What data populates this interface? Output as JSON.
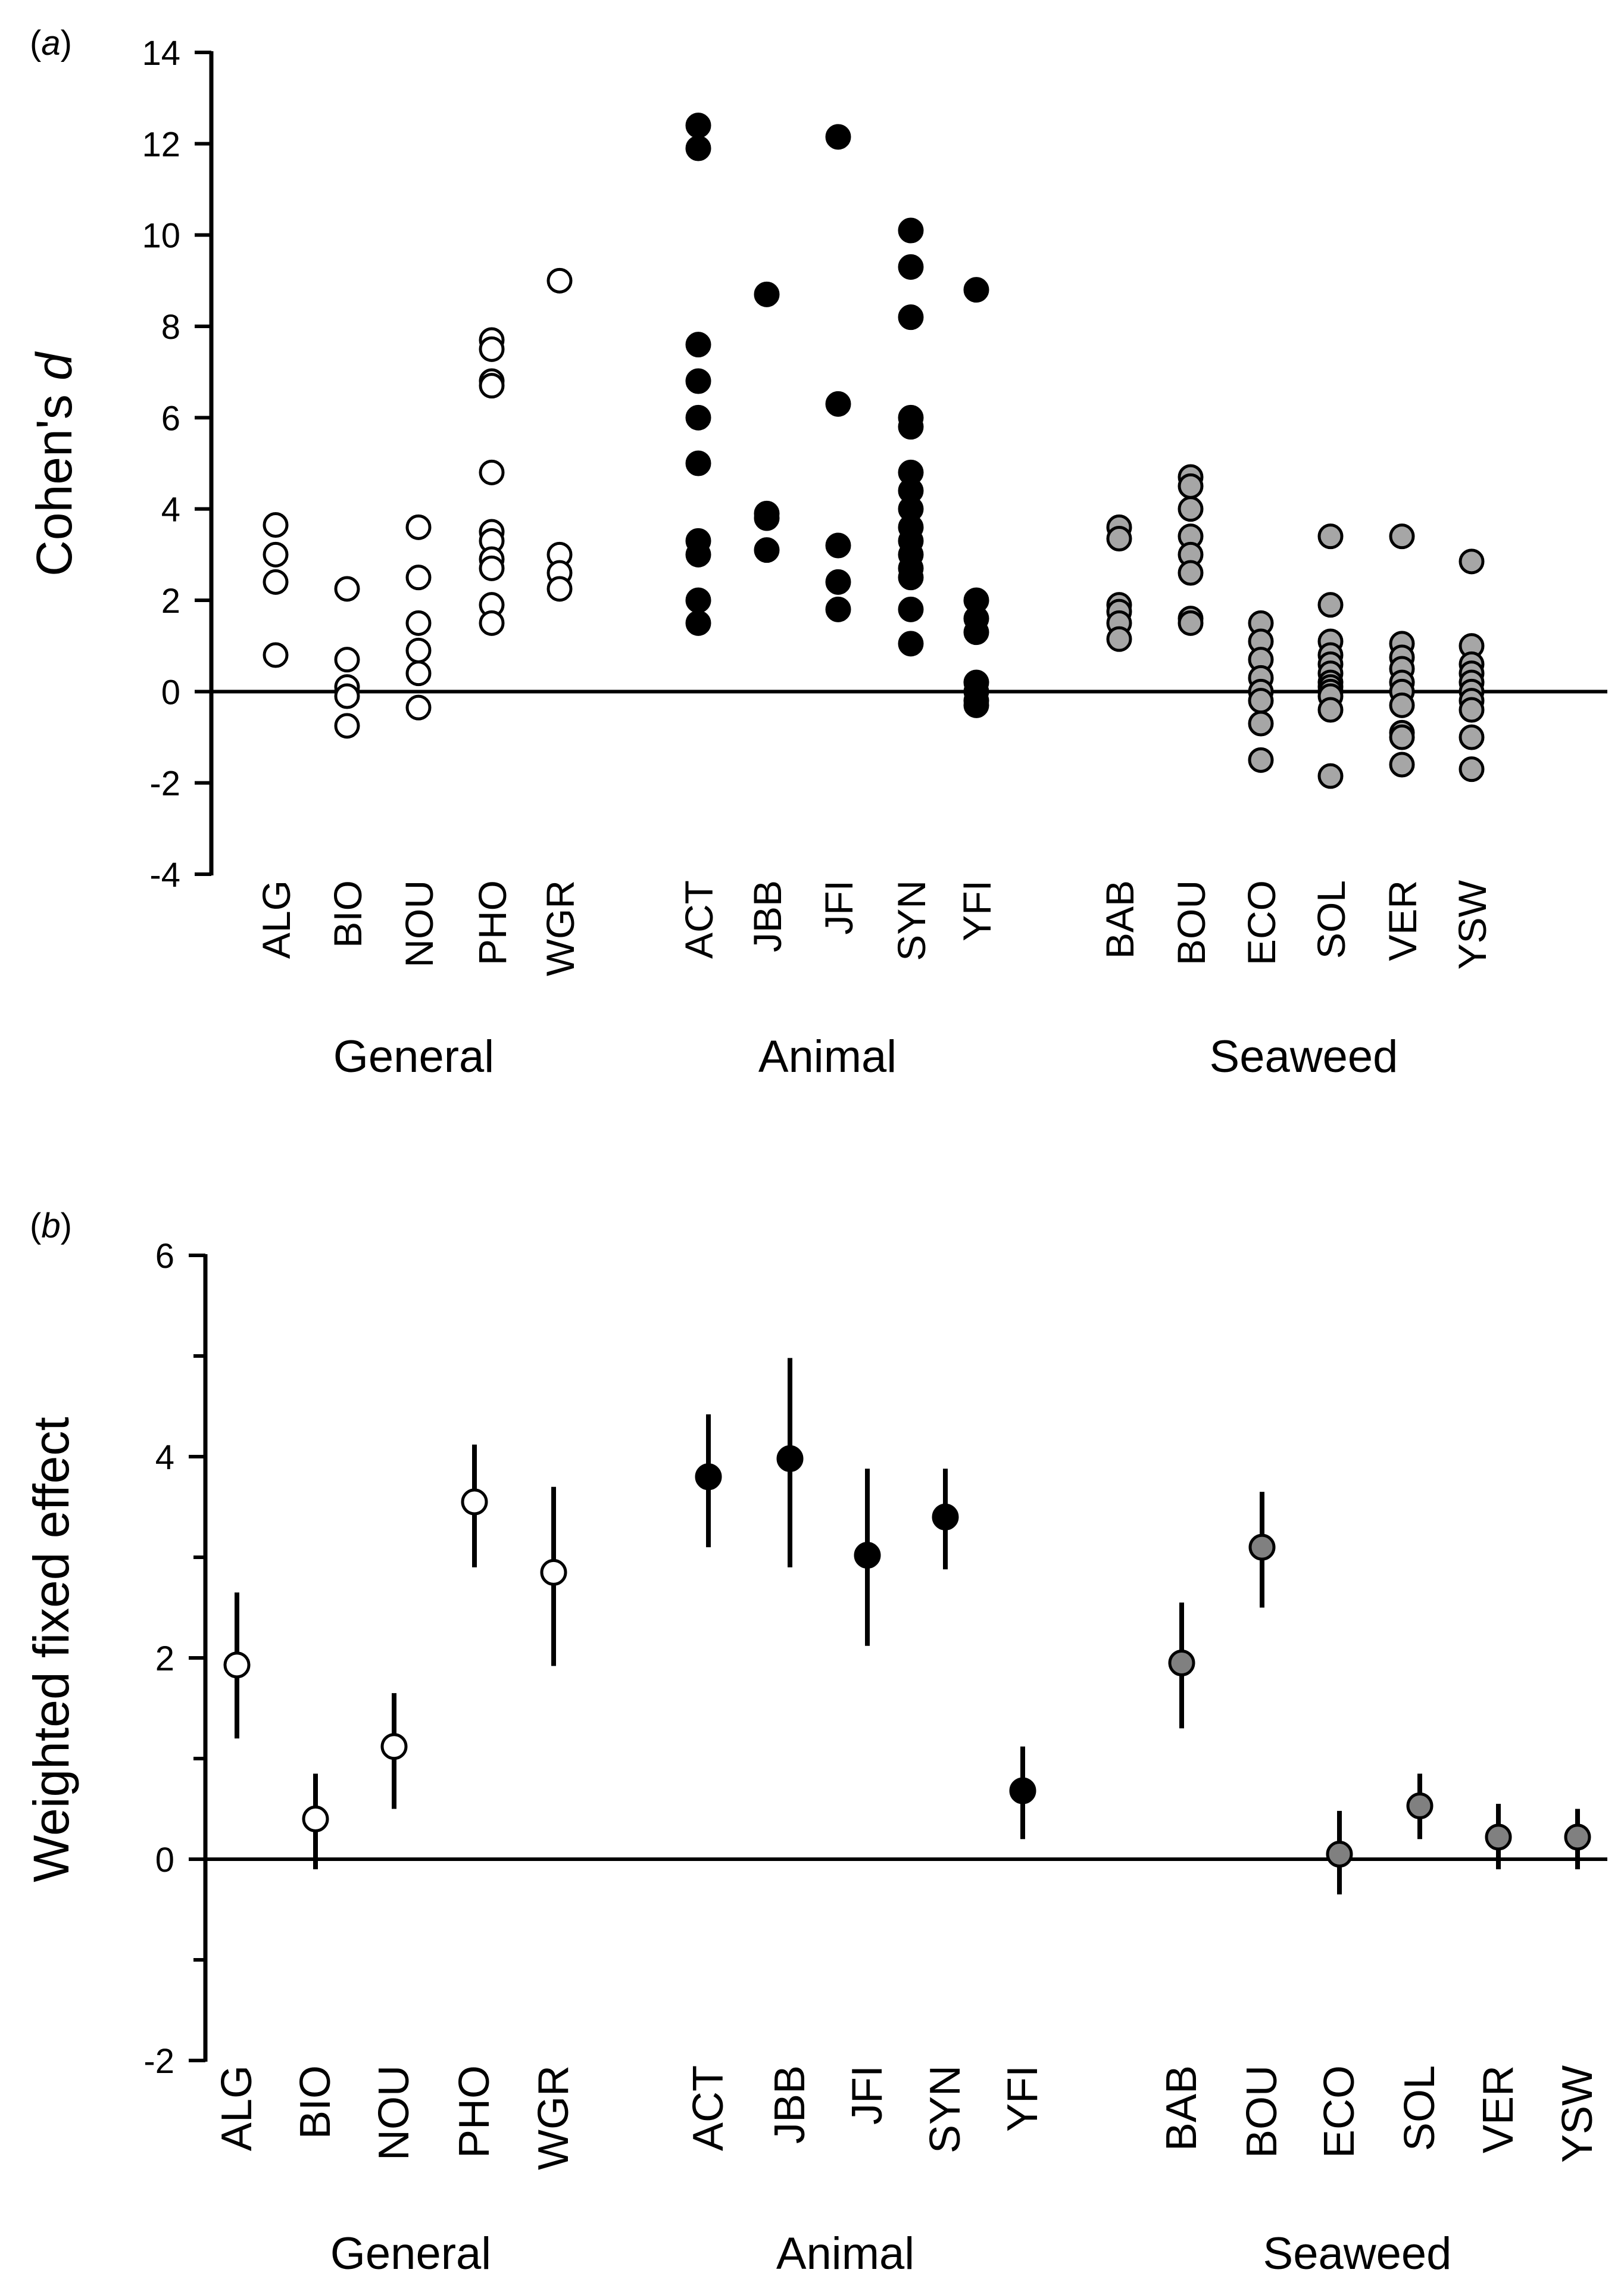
{
  "chart_data": [
    {
      "panel_label": "(a)",
      "type": "scatter",
      "ylabel_prefix": "Cohen's ",
      "ylabel_italic": "d",
      "ylim": [
        -4,
        14
      ],
      "yticks": [
        -4,
        -2,
        0,
        2,
        4,
        6,
        8,
        10,
        12,
        14
      ],
      "groups": [
        {
          "name": "General",
          "fill": "#ffffff"
        },
        {
          "name": "Animal",
          "fill": "#000000"
        },
        {
          "name": "Seaweed",
          "fill": "#a6a6a6"
        }
      ],
      "categories": [
        {
          "label": "ALG",
          "group": 0,
          "values": [
            3.65,
            3.0,
            2.4,
            0.8
          ]
        },
        {
          "label": "BIO",
          "group": 0,
          "values": [
            2.25,
            0.7,
            0.1,
            -0.1,
            -0.75
          ]
        },
        {
          "label": "NOU",
          "group": 0,
          "values": [
            3.6,
            2.5,
            1.5,
            0.9,
            0.4,
            -0.35
          ]
        },
        {
          "label": "PHO",
          "group": 0,
          "values": [
            7.7,
            7.5,
            6.8,
            6.7,
            4.8,
            3.5,
            3.3,
            2.9,
            2.7,
            1.9,
            1.5
          ]
        },
        {
          "label": "WGR",
          "group": 0,
          "values": [
            9.0,
            3.0,
            2.6,
            2.25
          ]
        },
        {
          "label": "ACT",
          "group": 1,
          "values": [
            12.4,
            11.9,
            7.6,
            6.8,
            6.0,
            5.0,
            3.3,
            3.0,
            2.0,
            1.5
          ]
        },
        {
          "label": "JBB",
          "group": 1,
          "values": [
            8.7,
            3.9,
            3.8,
            3.1
          ]
        },
        {
          "label": "JFI",
          "group": 1,
          "values": [
            12.15,
            6.3,
            3.2,
            2.4,
            1.8
          ]
        },
        {
          "label": "SYN",
          "group": 1,
          "values": [
            10.1,
            9.3,
            8.2,
            6.0,
            5.8,
            4.8,
            4.4,
            4.0,
            3.6,
            3.3,
            3.0,
            2.7,
            2.5,
            1.8,
            1.05
          ]
        },
        {
          "label": "YFI",
          "group": 1,
          "values": [
            8.8,
            2.0,
            1.6,
            1.3,
            0.2,
            0.0,
            -0.2,
            -0.3
          ]
        },
        {
          "label": "BAB",
          "group": 2,
          "values": [
            3.6,
            3.35,
            1.9,
            1.75,
            1.5,
            1.15
          ]
        },
        {
          "label": "BOU",
          "group": 2,
          "values": [
            4.7,
            4.5,
            4.0,
            3.4,
            3.0,
            2.6,
            1.6,
            1.5
          ]
        },
        {
          "label": "ECO",
          "group": 2,
          "values": [
            1.5,
            1.1,
            0.7,
            0.3,
            0.0,
            -0.2,
            -0.7,
            -1.5
          ]
        },
        {
          "label": "SOL",
          "group": 2,
          "values": [
            3.4,
            1.9,
            1.1,
            0.8,
            0.6,
            0.4,
            0.2,
            0.1,
            0.0,
            -0.1,
            -0.4,
            -1.85
          ]
        },
        {
          "label": "VER",
          "group": 2,
          "values": [
            3.4,
            1.05,
            0.75,
            0.5,
            0.2,
            0.0,
            -0.3,
            -0.9,
            -1.0,
            -1.6
          ]
        },
        {
          "label": "YSW",
          "group": 2,
          "values": [
            2.85,
            1.0,
            0.6,
            0.4,
            0.2,
            0.0,
            -0.2,
            -0.4,
            -1.0,
            -1.7
          ]
        }
      ]
    },
    {
      "panel_label": "(b)",
      "type": "errorbar",
      "ylabel": "Weighted fixed effect",
      "ylim": [
        -2,
        6
      ],
      "yticks": [
        -2,
        0,
        2,
        4,
        6
      ],
      "minor_yticks": [
        -1,
        1,
        3,
        5
      ],
      "groups": [
        {
          "name": "General",
          "fill": "#ffffff"
        },
        {
          "name": "Animal",
          "fill": "#000000"
        },
        {
          "name": "Seaweed",
          "fill": "#808080"
        }
      ],
      "categories": [
        {
          "label": "ALG",
          "group": 0,
          "value": 1.93,
          "low": 1.2,
          "high": 2.65
        },
        {
          "label": "BIO",
          "group": 0,
          "value": 0.4,
          "low": -0.1,
          "high": 0.85
        },
        {
          "label": "NOU",
          "group": 0,
          "value": 1.12,
          "low": 0.5,
          "high": 1.65
        },
        {
          "label": "PHO",
          "group": 0,
          "value": 3.55,
          "low": 2.9,
          "high": 4.12
        },
        {
          "label": "WGR",
          "group": 0,
          "value": 2.85,
          "low": 1.92,
          "high": 3.7
        },
        {
          "label": "ACT",
          "group": 1,
          "value": 3.8,
          "low": 3.1,
          "high": 4.42
        },
        {
          "label": "JBB",
          "group": 1,
          "value": 3.98,
          "low": 2.9,
          "high": 4.98
        },
        {
          "label": "JFI",
          "group": 1,
          "value": 3.02,
          "low": 2.12,
          "high": 3.88
        },
        {
          "label": "SYN",
          "group": 1,
          "value": 3.4,
          "low": 2.88,
          "high": 3.88
        },
        {
          "label": "YFI",
          "group": 1,
          "value": 0.68,
          "low": 0.2,
          "high": 1.12
        },
        {
          "label": "BAB",
          "group": 2,
          "value": 1.95,
          "low": 1.3,
          "high": 2.55
        },
        {
          "label": "BOU",
          "group": 2,
          "value": 3.1,
          "low": 2.5,
          "high": 3.65
        },
        {
          "label": "ECO",
          "group": 2,
          "value": 0.05,
          "low": -0.35,
          "high": 0.48
        },
        {
          "label": "SOL",
          "group": 2,
          "value": 0.53,
          "low": 0.2,
          "high": 0.85
        },
        {
          "label": "VER",
          "group": 2,
          "value": 0.22,
          "low": -0.1,
          "high": 0.55
        },
        {
          "label": "YSW",
          "group": 2,
          "value": 0.22,
          "low": -0.1,
          "high": 0.5
        }
      ]
    }
  ]
}
